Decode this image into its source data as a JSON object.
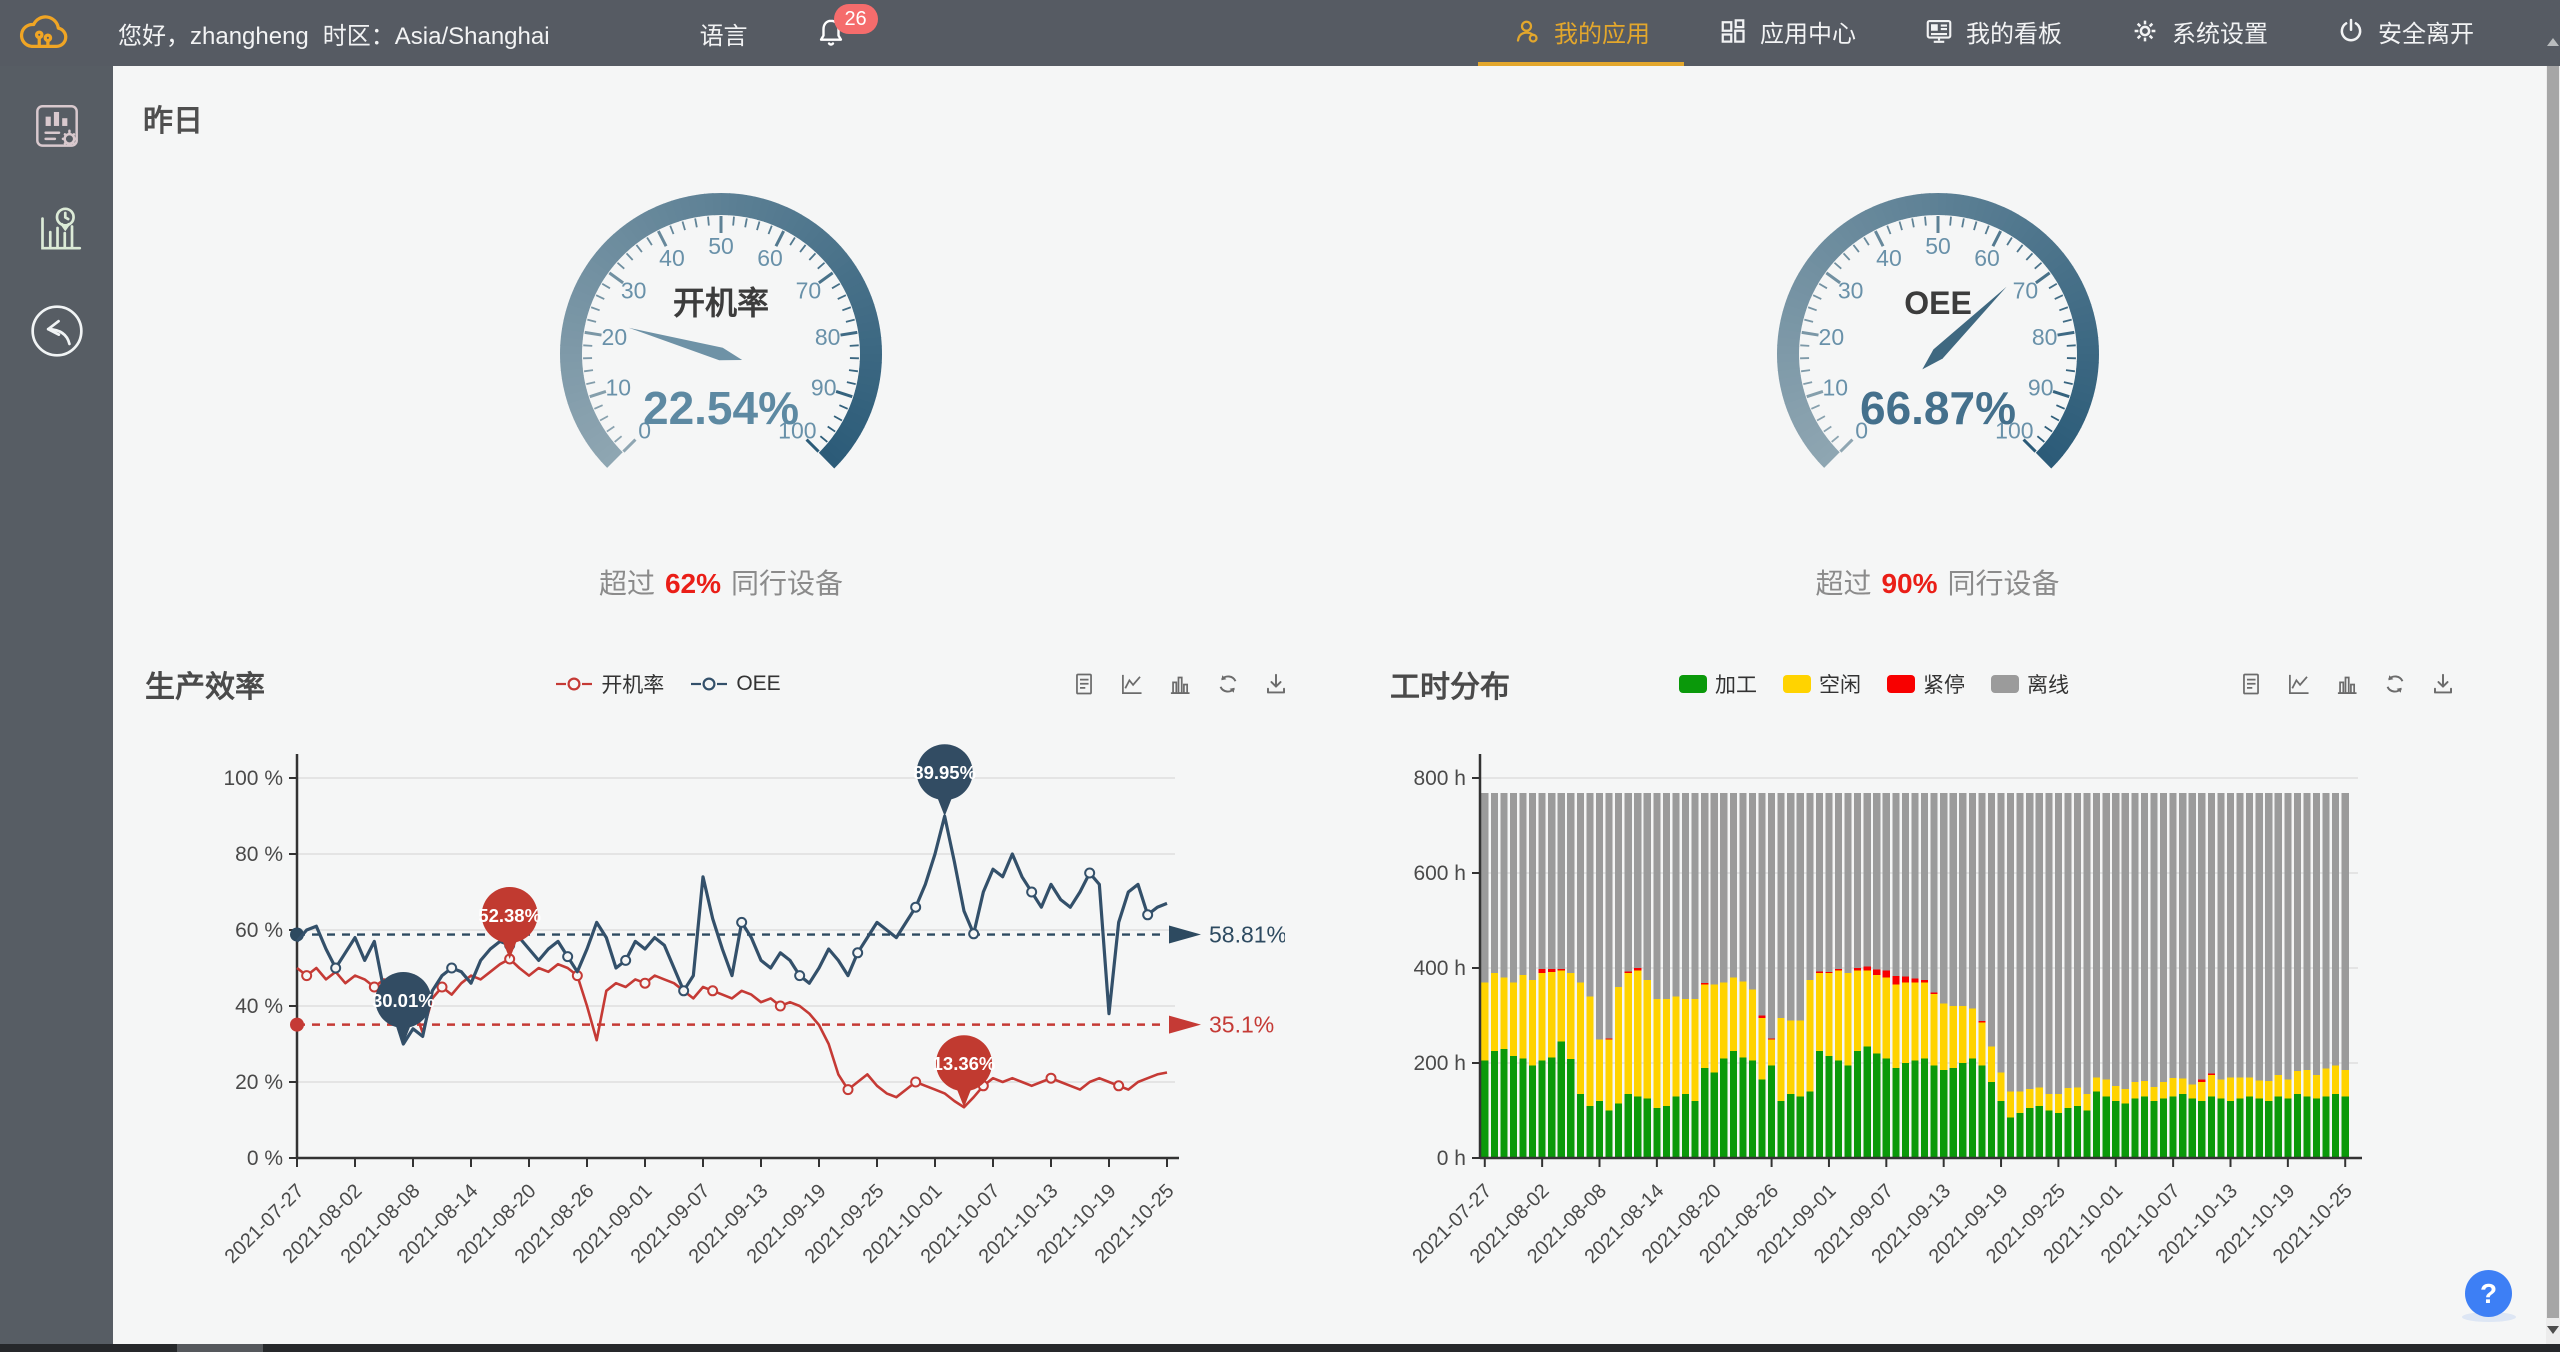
{
  "page_title": "昨日",
  "topbar": {
    "greeting": "您好，zhangheng",
    "timezone_label": "时区：Asia/Shanghai",
    "language_label": "语言",
    "notification_count": "26",
    "nav": [
      {
        "name": "my-apps",
        "label": "我的应用",
        "icon": "person",
        "active": true
      },
      {
        "name": "app-center",
        "label": "应用中心",
        "icon": "grid",
        "active": false
      },
      {
        "name": "my-dashboard",
        "label": "我的看板",
        "icon": "monitor",
        "active": false
      },
      {
        "name": "system-settings",
        "label": "系统设置",
        "icon": "gear",
        "active": false
      },
      {
        "name": "safe-logout",
        "label": "安全离开",
        "icon": "power",
        "active": false
      }
    ]
  },
  "sidebar": {
    "items": [
      {
        "name": "report-config",
        "icon": "report",
        "color": "#d9c9ce"
      },
      {
        "name": "work-hours",
        "icon": "hours",
        "color": "#dcebd7"
      },
      {
        "name": "back",
        "icon": "back",
        "color": "#f1f4f5"
      }
    ]
  },
  "gauges": [
    {
      "title": "开机率",
      "value": "22.54%",
      "value_num": 22.54,
      "min": 0,
      "max": 100,
      "compare_prefix": "超过",
      "compare_value": "62%",
      "compare_suffix": "同行设备",
      "value_color": "#5d89a2",
      "needle_color": "#6e92a6"
    },
    {
      "title": "OEE",
      "value": "66.87%",
      "value_num": 66.87,
      "min": 0,
      "max": 100,
      "compare_prefix": "超过",
      "compare_value": "90%",
      "compare_suffix": "同行设备",
      "value_color": "#44708c",
      "needle_color": "#3f6880"
    }
  ],
  "toolbox": [
    {
      "name": "data-view-icon",
      "icon": "data-view"
    },
    {
      "name": "line-chart-icon",
      "icon": "line-toggle"
    },
    {
      "name": "bar-chart-icon",
      "icon": "bar-toggle"
    },
    {
      "name": "refresh-icon",
      "icon": "refresh"
    },
    {
      "name": "download-icon",
      "icon": "download"
    }
  ],
  "colors": {
    "topbar_bg": "#565b63",
    "gold": "#e3a72c",
    "badge": "#f56c6c",
    "content_bg": "#f5f6f6",
    "band_start": "#8fa6b2",
    "band_end": "#2b5b78",
    "gauge_tick_label": "#6991a9",
    "grid": "#dedede",
    "axis": "#333333"
  },
  "chart_data": [
    {
      "type": "line",
      "title": "生产效率",
      "legend": [
        {
          "name": "kaijilv",
          "label": "开机率",
          "color": "#c53a35"
        },
        {
          "name": "oee",
          "label": "OEE",
          "color": "#33506a"
        }
      ],
      "x_tick_labels": [
        "2021-07-27",
        "2021-08-02",
        "2021-08-08",
        "2021-08-14",
        "2021-08-20",
        "2021-08-26",
        "2021-09-01",
        "2021-09-07",
        "2021-09-13",
        "2021-09-19",
        "2021-09-25",
        "2021-10-01",
        "2021-10-07",
        "2021-10-13",
        "2021-10-19",
        "2021-10-25"
      ],
      "n_points": 91,
      "y_ticks": [
        0,
        20,
        40,
        60,
        80,
        100
      ],
      "y_unit": "%",
      "ymax": 100,
      "series": [
        {
          "name": "开机率",
          "color": "#c53a35",
          "width": 2.6,
          "values": [
            50,
            48,
            50,
            47,
            49,
            46,
            48,
            47,
            45,
            47,
            46,
            44,
            40,
            33,
            42,
            45,
            43,
            46,
            48,
            47,
            49,
            51,
            52.38,
            50,
            48,
            50,
            49,
            51,
            50,
            48,
            40,
            31,
            44,
            46,
            45,
            47,
            46,
            48,
            47,
            46,
            44,
            42,
            45,
            44,
            43,
            42,
            44,
            43,
            41,
            42,
            40,
            41,
            40,
            38,
            35,
            30,
            22,
            18,
            20,
            22,
            19,
            17,
            16,
            18,
            20,
            19,
            18,
            17,
            15,
            13.36,
            16,
            19,
            21,
            20,
            21,
            20,
            19,
            20,
            21,
            20,
            19,
            18,
            20,
            21,
            20,
            19,
            18,
            20,
            21,
            22,
            22.5
          ]
        },
        {
          "name": "OEE",
          "color": "#33506a",
          "width": 3.2,
          "values": [
            57,
            60,
            61,
            55,
            50,
            54,
            58,
            52,
            57,
            44,
            38,
            30.01,
            34,
            32,
            44,
            48,
            50,
            49,
            46,
            52,
            55,
            57,
            56,
            58,
            55,
            52,
            55,
            57,
            53,
            49,
            55,
            62,
            58,
            50,
            52,
            57,
            55,
            58,
            56,
            50,
            44,
            48,
            74,
            63,
            55,
            48,
            62,
            58,
            52,
            50,
            54,
            52,
            48,
            46,
            50,
            55,
            52,
            48,
            54,
            58,
            62,
            60,
            58,
            62,
            66,
            72,
            80,
            89.95,
            78,
            65,
            59,
            70,
            76,
            74,
            80,
            74,
            70,
            66,
            72,
            68,
            66,
            70,
            75,
            72,
            38,
            62,
            70,
            72,
            64,
            66,
            67
          ]
        }
      ],
      "avg_lines": [
        {
          "label": "58.81%",
          "value": 58.81,
          "color": "#2d4a60"
        },
        {
          "label": "35.1%",
          "value": 35.1,
          "color": "#c53a35"
        }
      ],
      "markpoints": [
        {
          "label": "89.95%",
          "day": 67,
          "value": 89.95,
          "color": "#324c63"
        },
        {
          "label": "52.38%",
          "day": 22,
          "value": 52.38,
          "color": "#c13a30"
        },
        {
          "label": "30.01%",
          "day": 11,
          "value": 30.01,
          "color": "#324c63"
        },
        {
          "label": "13.36%",
          "day": 69,
          "value": 13.36,
          "color": "#c13a30"
        }
      ]
    },
    {
      "type": "bar",
      "title": "工时分布",
      "legend": [
        {
          "name": "jiagong",
          "label": "加工",
          "color": "#0a990a"
        },
        {
          "name": "kongxian",
          "label": "空闲",
          "color": "#ffd300"
        },
        {
          "name": "jinting",
          "label": "紧停",
          "color": "#f80000"
        },
        {
          "name": "lixian",
          "label": "离线",
          "color": "#9b9b9b"
        }
      ],
      "x_tick_labels": [
        "2021-07-27",
        "2021-08-02",
        "2021-08-08",
        "2021-08-14",
        "2021-08-20",
        "2021-08-26",
        "2021-09-01",
        "2021-09-07",
        "2021-09-13",
        "2021-09-19",
        "2021-09-25",
        "2021-10-01",
        "2021-10-07",
        "2021-10-13",
        "2021-10-19",
        "2021-10-25"
      ],
      "n_points": 91,
      "y_ticks": [
        0,
        200,
        400,
        600,
        800
      ],
      "y_unit": "h",
      "ymax": 800,
      "bar_total": 768,
      "series": [
        {
          "name": "加工",
          "color": "#0a990a",
          "values": [
            205,
            225,
            230,
            215,
            210,
            195,
            205,
            212,
            245,
            208,
            135,
            110,
            120,
            100,
            115,
            135,
            130,
            125,
            105,
            110,
            130,
            135,
            120,
            190,
            180,
            210,
            225,
            212,
            205,
            165,
            195,
            120,
            135,
            130,
            140,
            225,
            215,
            205,
            195,
            225,
            235,
            220,
            210,
            190,
            200,
            205,
            210,
            195,
            185,
            190,
            200,
            210,
            195,
            160,
            120,
            85,
            95,
            105,
            110,
            100,
            95,
            105,
            110,
            100,
            140,
            130,
            120,
            115,
            125,
            130,
            120,
            125,
            130,
            135,
            125,
            120,
            130,
            125,
            120,
            125,
            130,
            125,
            120,
            130,
            125,
            135,
            130,
            125,
            130,
            135,
            130
          ]
        },
        {
          "name": "空闲",
          "color": "#ffd300",
          "values": [
            165,
            165,
            150,
            155,
            175,
            180,
            185,
            180,
            150,
            182,
            235,
            230,
            130,
            150,
            245,
            255,
            265,
            250,
            230,
            225,
            210,
            200,
            215,
            175,
            185,
            160,
            155,
            160,
            150,
            130,
            55,
            175,
            155,
            160,
            235,
            165,
            175,
            190,
            195,
            170,
            160,
            165,
            170,
            175,
            170,
            165,
            160,
            150,
            140,
            130,
            120,
            105,
            90,
            75,
            60,
            55,
            45,
            40,
            38,
            35,
            40,
            42,
            38,
            35,
            30,
            35,
            32,
            30,
            35,
            32,
            30,
            35,
            38,
            32,
            30,
            40,
            45,
            40,
            50,
            45,
            40,
            38,
            42,
            45,
            40,
            48,
            55,
            50,
            58,
            60,
            55
          ]
        },
        {
          "name": "紧停",
          "color": "#f80000",
          "values": [
            0,
            0,
            0,
            0,
            0,
            0,
            8,
            6,
            3,
            0,
            0,
            0,
            0,
            2,
            0,
            3,
            5,
            0,
            0,
            0,
            0,
            0,
            0,
            3,
            0,
            0,
            0,
            0,
            0,
            5,
            2,
            0,
            0,
            0,
            0,
            3,
            2,
            3,
            0,
            5,
            8,
            12,
            15,
            18,
            12,
            8,
            5,
            3,
            0,
            0,
            0,
            0,
            3,
            0,
            0,
            0,
            0,
            0,
            0,
            0,
            0,
            0,
            0,
            0,
            0,
            0,
            0,
            0,
            0,
            0,
            0,
            0,
            0,
            0,
            0,
            5,
            3,
            0,
            0,
            0,
            0,
            0,
            0,
            0,
            0,
            0,
            0,
            0,
            0,
            0,
            0
          ]
        },
        {
          "name": "离线",
          "color": "#9b9b9b",
          "fill_to_total": true,
          "values": []
        }
      ]
    }
  ],
  "help_label": "?"
}
